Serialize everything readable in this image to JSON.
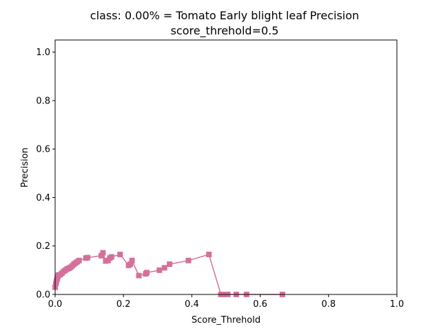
{
  "chart_data": {
    "type": "line",
    "title_line1": "class: 0.00% = Tomato Early blight leaf Precision",
    "title_line2": "score_threhold=0.5",
    "xlabel": "Score_Threhold",
    "ylabel": "Precision",
    "xlim": [
      0,
      1
    ],
    "ylim": [
      0,
      1.05
    ],
    "xticks": [
      "0.0",
      "0.2",
      "0.4",
      "0.6",
      "0.8",
      "1.0"
    ],
    "yticks": [
      "0.0",
      "0.2",
      "0.4",
      "0.6",
      "0.8",
      "1.0"
    ],
    "grid": false,
    "series": [
      {
        "color": "#d4719a",
        "marker": "square",
        "points": [
          [
            0.0,
            0.03
          ],
          [
            0.002,
            0.045
          ],
          [
            0.004,
            0.055
          ],
          [
            0.006,
            0.065
          ],
          [
            0.008,
            0.075
          ],
          [
            0.01,
            0.08
          ],
          [
            0.015,
            0.082
          ],
          [
            0.02,
            0.088
          ],
          [
            0.025,
            0.095
          ],
          [
            0.03,
            0.1
          ],
          [
            0.035,
            0.105
          ],
          [
            0.04,
            0.108
          ],
          [
            0.045,
            0.112
          ],
          [
            0.05,
            0.118
          ],
          [
            0.055,
            0.125
          ],
          [
            0.06,
            0.13
          ],
          [
            0.065,
            0.135
          ],
          [
            0.07,
            0.14
          ],
          [
            0.09,
            0.15
          ],
          [
            0.095,
            0.152
          ],
          [
            0.135,
            0.16
          ],
          [
            0.14,
            0.172
          ],
          [
            0.148,
            0.138
          ],
          [
            0.155,
            0.14
          ],
          [
            0.16,
            0.15
          ],
          [
            0.165,
            0.155
          ],
          [
            0.19,
            0.165
          ],
          [
            0.215,
            0.12
          ],
          [
            0.22,
            0.125
          ],
          [
            0.225,
            0.14
          ],
          [
            0.245,
            0.078
          ],
          [
            0.265,
            0.085
          ],
          [
            0.268,
            0.09
          ],
          [
            0.305,
            0.1
          ],
          [
            0.32,
            0.11
          ],
          [
            0.335,
            0.125
          ],
          [
            0.39,
            0.14
          ],
          [
            0.45,
            0.165
          ],
          [
            0.485,
            0.0
          ],
          [
            0.495,
            0.0
          ],
          [
            0.505,
            0.0
          ],
          [
            0.53,
            0.0
          ],
          [
            0.56,
            0.0
          ],
          [
            0.665,
            0.0
          ]
        ]
      }
    ]
  }
}
